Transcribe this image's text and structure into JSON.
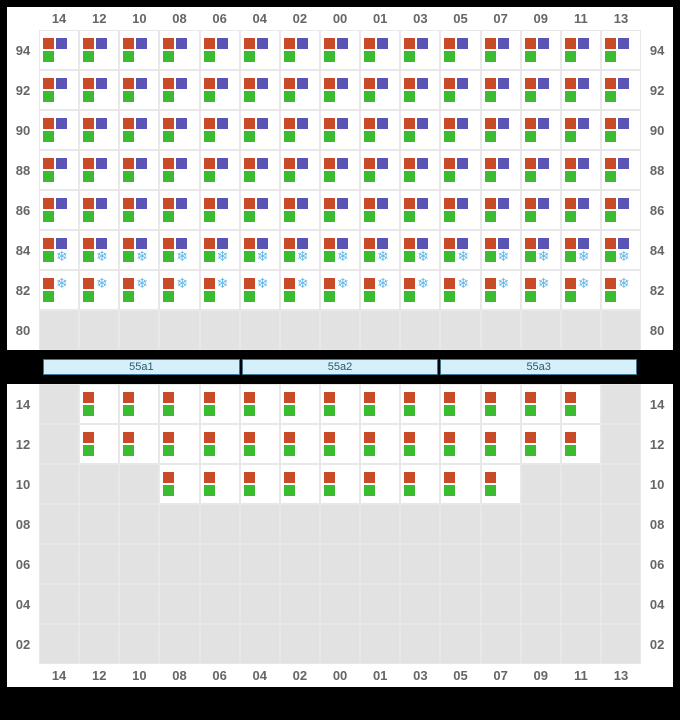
{
  "columns": [
    "14",
    "12",
    "10",
    "08",
    "06",
    "04",
    "02",
    "00",
    "01",
    "03",
    "05",
    "07",
    "09",
    "11",
    "13"
  ],
  "top_rows": [
    "94",
    "92",
    "90",
    "88",
    "86",
    "84",
    "82",
    "80"
  ],
  "bottom_rows": [
    "14",
    "12",
    "10",
    "08",
    "06",
    "04",
    "02"
  ],
  "sections": [
    "55a1",
    "55a2",
    "55a3"
  ],
  "colors": {
    "orange": "#c94a27",
    "purple": "#5a55b5",
    "green": "#3bbb2f",
    "snow": "#5fb6ea",
    "empty_bg": "#e2e2e2"
  },
  "top_grid": {
    "94": {
      "type": "op_pg",
      "cols": "all"
    },
    "92": {
      "type": "op_pg",
      "cols": "all"
    },
    "90": {
      "type": "op_pg",
      "cols": "all"
    },
    "88": {
      "type": "op_pg",
      "cols": "all"
    },
    "86": {
      "type": "op_pg",
      "cols": "all"
    },
    "84": {
      "type": "op_pgs",
      "cols": "all"
    },
    "82": {
      "type": "ogs",
      "cols": "all"
    },
    "80": {
      "type": "empty",
      "cols": "all"
    }
  },
  "bottom_grid": {
    "14": {
      "type": "og",
      "cols": [
        "12",
        "10",
        "08",
        "06",
        "04",
        "02",
        "00",
        "01",
        "03",
        "05",
        "07",
        "09",
        "11"
      ]
    },
    "12": {
      "type": "og",
      "cols": [
        "12",
        "10",
        "08",
        "06",
        "04",
        "02",
        "00",
        "01",
        "03",
        "05",
        "07",
        "09",
        "11"
      ]
    },
    "10": {
      "type": "og",
      "cols": [
        "08",
        "06",
        "04",
        "02",
        "00",
        "01",
        "03",
        "05",
        "07"
      ]
    },
    "08": {
      "type": "empty",
      "cols": []
    },
    "06": {
      "type": "empty",
      "cols": []
    },
    "04": {
      "type": "empty",
      "cols": []
    },
    "02": {
      "type": "empty",
      "cols": []
    }
  }
}
